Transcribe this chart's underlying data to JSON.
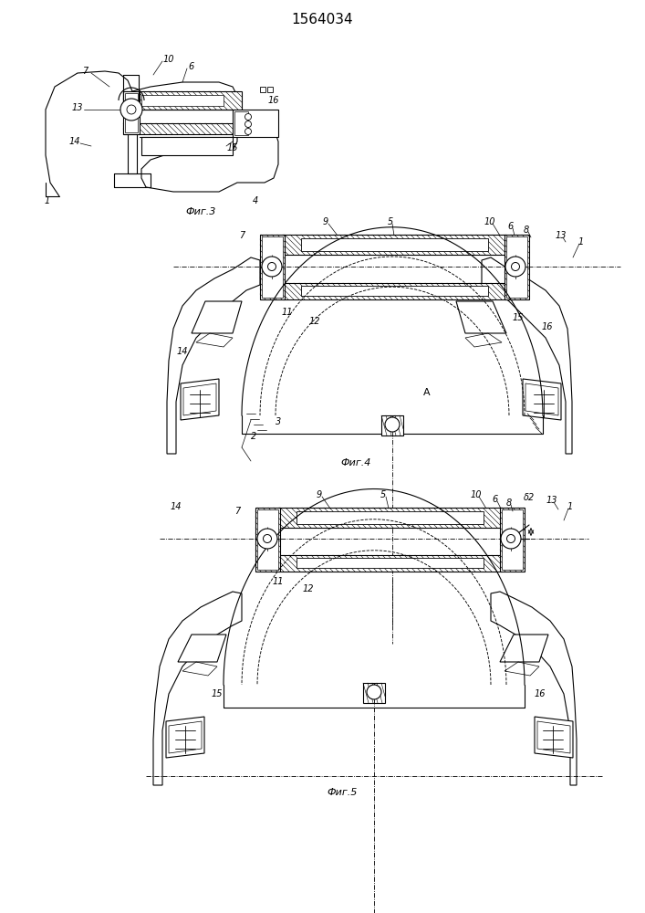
{
  "title": "1564034",
  "fig3_label": "Фиг.3",
  "fig4_label": "Фиг.4",
  "fig5_label": "Фиг.5",
  "bg_color": "#ffffff",
  "lc": "#000000",
  "lw": 0.8,
  "fig_width": 7.07,
  "fig_height": 10.0,
  "dpi": 100
}
